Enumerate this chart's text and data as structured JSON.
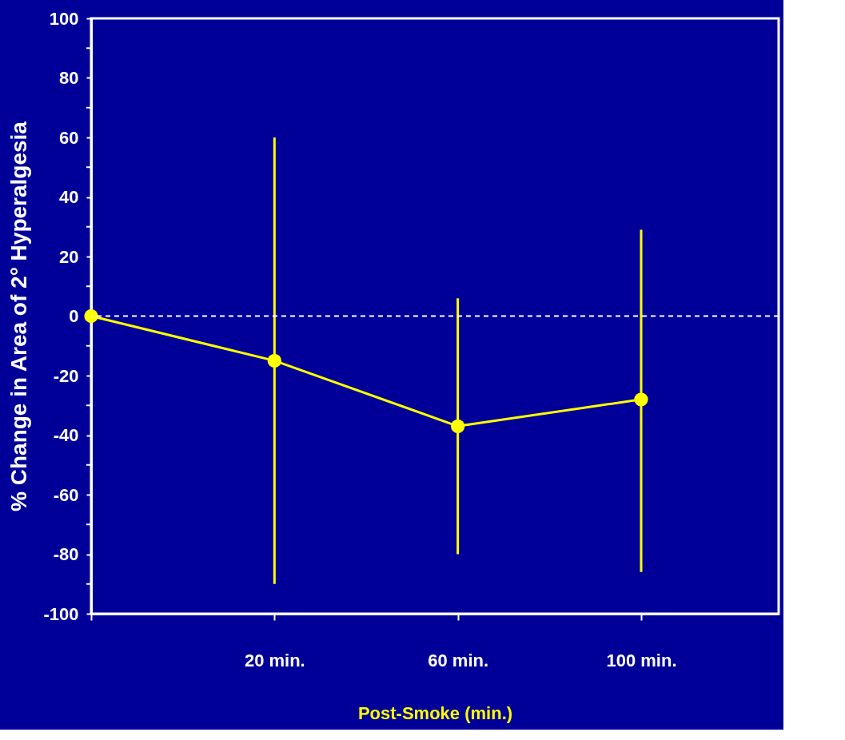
{
  "chart_data": {
    "type": "line",
    "xlabel": "Post-Smoke (min.)",
    "ylabel": "% Change in Area of 2° Hyperalgesia",
    "categories": [
      null,
      "20 min.",
      "60 min.",
      "100 min."
    ],
    "series": [
      {
        "color": "#ffff00",
        "values": [
          0,
          -15,
          -37,
          -28
        ],
        "errors": [
          null,
          [
            -90,
            60
          ],
          [
            -80,
            6
          ],
          [
            -86,
            29
          ]
        ]
      }
    ],
    "ylim": [
      -100,
      100
    ],
    "yticks": [
      -100,
      {
        "value": -90,
        "label": null
      },
      -80,
      {
        "value": -70,
        "label": null
      },
      -60,
      {
        "value": -50,
        "label": null
      },
      -40,
      {
        "value": -30,
        "label": null
      },
      -20,
      {
        "value": -10,
        "label": null
      },
      0,
      {
        "value": 10,
        "label": null
      },
      20,
      {
        "value": 30,
        "label": null
      },
      40,
      {
        "value": 50,
        "label": null
      },
      60,
      {
        "value": 70,
        "label": null
      },
      80,
      {
        "value": 90,
        "label": null
      },
      100
    ],
    "ref_lines": [
      {
        "axis": "y",
        "value": 0,
        "color": "#ffffff",
        "line_style": "dashed"
      }
    ],
    "marker": "circle",
    "line_style": "solid",
    "grid": false
  }
}
